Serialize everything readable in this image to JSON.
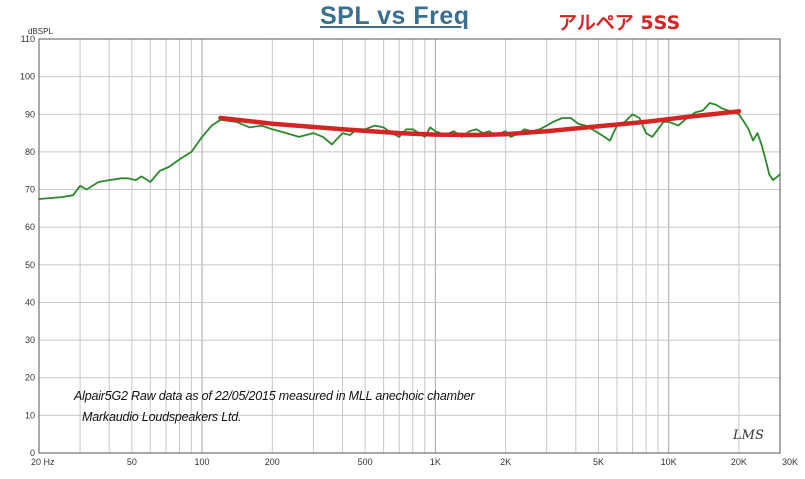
{
  "title": "SPL vs Freq",
  "subtitle": "アルペア 5SS",
  "ylabel": "dBSPL",
  "annotation_line1": "Alpair5G2 Raw data  as of 22/05/2015  measured in MLL anechoic chamber",
  "annotation_line2": "Markaudio Loudspeakers Ltd.",
  "signature": "LMS",
  "colors": {
    "measured": "#2a8a2a",
    "trend": "#d42424",
    "grid": "#c8c8c8",
    "frame": "#555555",
    "title": "#3a6f8f"
  },
  "chart_data": {
    "type": "line",
    "x_scale": "log",
    "xlim": [
      20,
      30000
    ],
    "ylim": [
      0,
      110
    ],
    "y_ticks": [
      0,
      10,
      20,
      30,
      40,
      50,
      60,
      70,
      80,
      90,
      100,
      110
    ],
    "x_ticks": [
      {
        "value": 20,
        "label": "20 Hz"
      },
      {
        "value": 50,
        "label": "50"
      },
      {
        "value": 100,
        "label": "100"
      },
      {
        "value": 200,
        "label": "200"
      },
      {
        "value": 500,
        "label": "500"
      },
      {
        "value": 1000,
        "label": "1K"
      },
      {
        "value": 2000,
        "label": "2K"
      },
      {
        "value": 5000,
        "label": "5K"
      },
      {
        "value": 10000,
        "label": "10K"
      },
      {
        "value": 20000,
        "label": "20K"
      },
      {
        "value": 30000,
        "label": "30K"
      }
    ],
    "grid": true,
    "series": [
      {
        "color": "#2a8a2a",
        "x": [
          20,
          25,
          28,
          30,
          32,
          36,
          40,
          45,
          48,
          52,
          55,
          60,
          66,
          72,
          80,
          90,
          100,
          110,
          120,
          140,
          160,
          180,
          200,
          230,
          260,
          300,
          330,
          360,
          400,
          430,
          460,
          500,
          550,
          600,
          650,
          700,
          750,
          800,
          850,
          900,
          950,
          1000,
          1100,
          1200,
          1300,
          1400,
          1500,
          1600,
          1700,
          1800,
          1900,
          2000,
          2100,
          2200,
          2300,
          2400,
          2600,
          2800,
          3000,
          3200,
          3500,
          3800,
          4100,
          4400,
          4700,
          5000,
          5300,
          5600,
          6000,
          6500,
          7000,
          7500,
          8000,
          8500,
          9000,
          9500,
          10000,
          11000,
          12000,
          13000,
          14000,
          15000,
          16000,
          17000,
          18000,
          19000,
          20000,
          21000,
          22000,
          23000,
          24000,
          25000,
          26000,
          27000,
          28000,
          30000
        ],
        "y": [
          67.5,
          68,
          68.5,
          71,
          70,
          72,
          72.5,
          73,
          73,
          72.5,
          73.5,
          72,
          75,
          76,
          78,
          80,
          84,
          87,
          88.5,
          88,
          86.5,
          87,
          86,
          85,
          84,
          85,
          84,
          82,
          85,
          84.5,
          86,
          86,
          87,
          86.5,
          85,
          84,
          86,
          86,
          85,
          84,
          86.5,
          85.5,
          84.5,
          85.5,
          84,
          85.5,
          86,
          85,
          85.5,
          84.5,
          85,
          85.5,
          84,
          84.5,
          85,
          86,
          85.5,
          86,
          87,
          88,
          89,
          89,
          87.5,
          87,
          86,
          85,
          84,
          83,
          87,
          88,
          90,
          89,
          85,
          84,
          86,
          88,
          88,
          87,
          89,
          90.5,
          91,
          93,
          92.5,
          91.5,
          91,
          90.5,
          90,
          88,
          86,
          83,
          85,
          82,
          78,
          74,
          72.5,
          74
        ]
      },
      {
        "color": "#d42424",
        "x": [
          120,
          200,
          400,
          700,
          1000,
          1500,
          2000,
          3000,
          5000,
          8000,
          12000,
          17000,
          20000
        ],
        "y": [
          89,
          87.5,
          86,
          85,
          84.6,
          84.5,
          84.7,
          85.5,
          86.8,
          88,
          89.3,
          90.3,
          90.8
        ]
      }
    ]
  }
}
